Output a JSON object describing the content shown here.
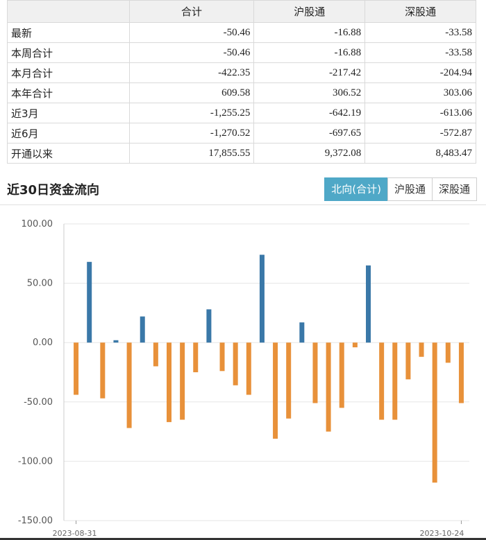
{
  "table": {
    "headers": [
      "",
      "合计",
      "沪股通",
      "深股通"
    ],
    "rows": [
      {
        "label": "最新",
        "total": "-50.46",
        "sh": "-16.88",
        "sz": "-33.58"
      },
      {
        "label": "本周合计",
        "total": "-50.46",
        "sh": "-16.88",
        "sz": "-33.58"
      },
      {
        "label": "本月合计",
        "total": "-422.35",
        "sh": "-217.42",
        "sz": "-204.94"
      },
      {
        "label": "本年合计",
        "total": "609.58",
        "sh": "306.52",
        "sz": "303.06"
      },
      {
        "label": "近3月",
        "total": "-1,255.25",
        "sh": "-642.19",
        "sz": "-613.06"
      },
      {
        "label": "近6月",
        "total": "-1,270.52",
        "sh": "-697.65",
        "sz": "-572.87"
      },
      {
        "label": "开通以来",
        "total": "17,855.55",
        "sh": "9,372.08",
        "sz": "8,483.47"
      }
    ]
  },
  "section": {
    "title": "近30日资金流向"
  },
  "tabs": [
    {
      "label": "北向(合计)",
      "active": true
    },
    {
      "label": "沪股通",
      "active": false
    },
    {
      "label": "深股通",
      "active": false
    }
  ],
  "colors": {
    "positive": "#3a78a8",
    "negative": "#e8913a",
    "active_tab": "#4fa8c7"
  },
  "chart_data": {
    "type": "bar",
    "ylim": [
      -150,
      100
    ],
    "yticks": [
      "100.00",
      "50.00",
      "0.00",
      "-50.00",
      "-100.00",
      "-150.00"
    ],
    "ytick_values": [
      100,
      50,
      0,
      -50,
      -100,
      -150
    ],
    "xtick_labels": [
      "2023-08-31",
      "2023-10-24"
    ],
    "grid": true,
    "values": [
      -44,
      68,
      -47,
      2,
      -72,
      22,
      -20,
      -67,
      -65,
      -25,
      28,
      -24,
      -36,
      -44,
      74,
      -81,
      -64,
      17,
      -51,
      -75,
      -55,
      -4,
      65,
      -65,
      -65,
      -31,
      -12,
      -118,
      -17,
      -51
    ]
  }
}
